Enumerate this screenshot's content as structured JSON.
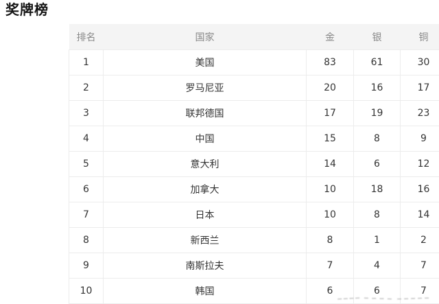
{
  "page_title": "奖牌榜",
  "colors": {
    "header_bg": "#f4f4f4",
    "header_text": "#888888",
    "body_text": "#333333",
    "border": "#ececec",
    "title_text": "#141414"
  },
  "table": {
    "columns": [
      {
        "key": "rank",
        "label": "排名"
      },
      {
        "key": "country",
        "label": "国家"
      },
      {
        "key": "gold",
        "label": "金"
      },
      {
        "key": "silver",
        "label": "银"
      },
      {
        "key": "bronze",
        "label": "铜"
      }
    ],
    "rows": [
      {
        "rank": "1",
        "country": "美国",
        "gold": "83",
        "silver": "61",
        "bronze": "30"
      },
      {
        "rank": "2",
        "country": "罗马尼亚",
        "gold": "20",
        "silver": "16",
        "bronze": "17"
      },
      {
        "rank": "3",
        "country": "联邦德国",
        "gold": "17",
        "silver": "19",
        "bronze": "23"
      },
      {
        "rank": "4",
        "country": "中国",
        "gold": "15",
        "silver": "8",
        "bronze": "9"
      },
      {
        "rank": "5",
        "country": "意大利",
        "gold": "14",
        "silver": "6",
        "bronze": "12"
      },
      {
        "rank": "6",
        "country": "加拿大",
        "gold": "10",
        "silver": "18",
        "bronze": "16"
      },
      {
        "rank": "7",
        "country": "日本",
        "gold": "10",
        "silver": "8",
        "bronze": "14"
      },
      {
        "rank": "8",
        "country": "新西兰",
        "gold": "8",
        "silver": "1",
        "bronze": "2"
      },
      {
        "rank": "9",
        "country": "南斯拉夫",
        "gold": "7",
        "silver": "4",
        "bronze": "7"
      },
      {
        "rank": "10",
        "country": "韩国",
        "gold": "6",
        "silver": "6",
        "bronze": "7"
      }
    ]
  }
}
